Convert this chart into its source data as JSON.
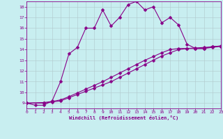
{
  "xlabel": "Windchill (Refroidissement éolien,°C)",
  "bg_color": "#c8eef0",
  "line_color": "#880088",
  "xlim": [
    0,
    23
  ],
  "ylim": [
    8.5,
    18.5
  ],
  "xticks": [
    0,
    1,
    2,
    3,
    4,
    5,
    6,
    7,
    8,
    9,
    10,
    11,
    12,
    13,
    14,
    15,
    16,
    17,
    18,
    19,
    20,
    21,
    22,
    23
  ],
  "yticks": [
    9,
    10,
    11,
    12,
    13,
    14,
    15,
    16,
    17,
    18
  ],
  "line1_x": [
    0,
    1,
    2,
    3,
    4,
    5,
    6,
    7,
    8,
    9,
    10,
    11,
    12,
    13,
    14,
    15,
    16,
    17,
    18,
    19,
    20,
    21,
    22,
    23
  ],
  "line1_y": [
    9.0,
    8.8,
    8.8,
    9.2,
    11.0,
    13.6,
    14.2,
    16.0,
    16.0,
    17.7,
    16.2,
    17.0,
    18.2,
    18.5,
    17.7,
    18.0,
    16.5,
    17.0,
    16.3,
    14.5,
    14.1,
    14.1,
    14.3,
    14.3
  ],
  "line2_x": [
    0,
    2,
    3,
    4,
    5,
    6,
    7,
    8,
    9,
    10,
    11,
    12,
    13,
    14,
    15,
    16,
    17,
    18,
    19,
    20,
    21,
    22,
    23
  ],
  "line2_y": [
    9.0,
    9.0,
    9.1,
    9.2,
    9.5,
    9.8,
    10.1,
    10.4,
    10.7,
    11.0,
    11.4,
    11.8,
    12.2,
    12.6,
    13.0,
    13.4,
    13.7,
    14.0,
    14.1,
    14.1,
    14.1,
    14.2,
    14.3
  ],
  "line3_x": [
    0,
    2,
    3,
    4,
    5,
    6,
    7,
    8,
    9,
    10,
    11,
    12,
    13,
    14,
    15,
    16,
    17,
    18,
    19,
    20,
    21,
    22,
    23
  ],
  "line3_y": [
    9.0,
    9.05,
    9.15,
    9.3,
    9.6,
    9.95,
    10.3,
    10.65,
    11.0,
    11.4,
    11.8,
    12.2,
    12.6,
    13.0,
    13.35,
    13.7,
    14.0,
    14.1,
    14.1,
    14.15,
    14.2,
    14.25,
    14.35
  ],
  "grid_color": "#b0c8cc",
  "markersize": 2.5,
  "linewidth": 0.8
}
